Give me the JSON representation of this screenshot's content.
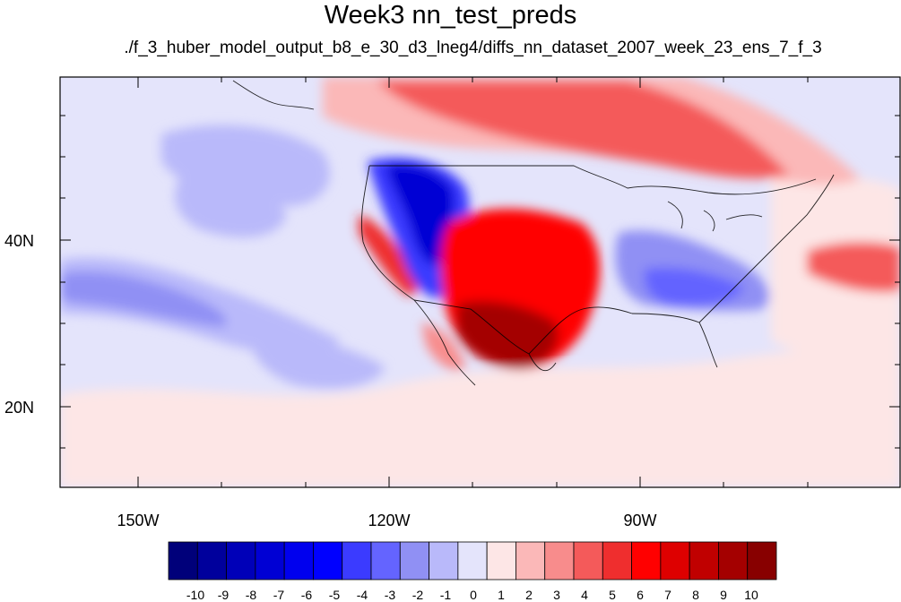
{
  "title": "Week3 nn_test_preds",
  "subtitle": "./f_3_huber_model_output_b8_e_30_d3_lneg4/diffs_nn_dataset_2007_week_23_ens_7_f_3",
  "map": {
    "lon_labels": [
      "150W",
      "120W",
      "90W"
    ],
    "lat_labels": [
      "40N",
      "20N"
    ]
  },
  "colorbar": {
    "labels": [
      "-10",
      "-9",
      "-8",
      "-7",
      "-6",
      "-5",
      "-4",
      "-3",
      "-2",
      "-1",
      "0",
      "1",
      "2",
      "3",
      "4",
      "5",
      "6",
      "7",
      "8",
      "9",
      "10"
    ],
    "colors": [
      "#00007a",
      "#00009c",
      "#0000b8",
      "#0000d4",
      "#0000ee",
      "#0000ff",
      "#3b3bff",
      "#6464ff",
      "#9090f4",
      "#b9b9fa",
      "#e4e4fb",
      "#fde6e6",
      "#fbb8b8",
      "#f88c8c",
      "#f45a5a",
      "#ef2e2e",
      "#ff0000",
      "#de0000",
      "#c00000",
      "#a40000",
      "#880000"
    ]
  }
}
